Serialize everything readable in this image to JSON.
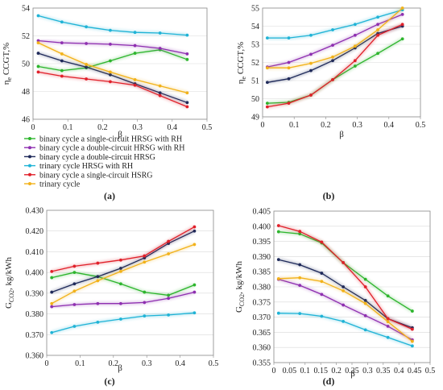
{
  "legend": [
    {
      "label": "binary cycle a single-circuit HRSG with RH",
      "color": "#2db52d"
    },
    {
      "label": "binary cycle a double-circuit HRSG with RH",
      "color": "#8e2fb0"
    },
    {
      "label": "binary cycle a double-circuit HRSG",
      "color": "#1f2a5a"
    },
    {
      "label": "trinary cycle HRSG with RH",
      "color": "#1fb3d6"
    },
    {
      "label": "binary cycle a single-circuit HSRG",
      "color": "#e0202a"
    },
    {
      "label": "trinary cycle",
      "color": "#f2b21a"
    }
  ],
  "chart_data": [
    {
      "type": "line",
      "panel_label": "(a)",
      "xlabel": "β",
      "ylabel": "η e CCGT,%",
      "ylabel_main": "η",
      "ylabel_sub": "e",
      "ylabel_rest": " CCGT,%",
      "xlim": [
        0,
        0.5
      ],
      "ylim": [
        46,
        54
      ],
      "xticks": [
        "0",
        "0.1",
        "0.2",
        "0.3",
        "0.4",
        "0.5"
      ],
      "yticks": [
        "46",
        "48",
        "50",
        "52",
        "54"
      ],
      "x": [
        0.015,
        0.083,
        0.153,
        0.222,
        0.293,
        0.365,
        0.443
      ],
      "series": [
        {
          "name": "binary cycle a single-circuit HRSG with RH",
          "color": "#2db52d",
          "values": [
            49.8,
            49.5,
            49.7,
            50.2,
            50.75,
            51.0,
            50.3
          ]
        },
        {
          "name": "binary cycle a double-circuit HRSG with RH",
          "color": "#8e2fb0",
          "values": [
            51.65,
            51.5,
            51.45,
            51.4,
            51.3,
            51.1,
            50.7
          ]
        },
        {
          "name": "binary cycle a double-circuit HRSG",
          "color": "#1f2a5a",
          "values": [
            50.75,
            50.2,
            49.75,
            49.2,
            48.55,
            47.9,
            47.2
          ]
        },
        {
          "name": "trinary cycle HRSG with RH",
          "color": "#1fb3d6",
          "values": [
            53.45,
            53.0,
            52.65,
            52.4,
            52.25,
            52.2,
            52.05
          ]
        },
        {
          "name": "binary cycle a single-circuit HSRG",
          "color": "#e0202a",
          "values": [
            49.4,
            49.1,
            48.9,
            48.7,
            48.45,
            47.7,
            46.9
          ]
        },
        {
          "name": "trinary cycle",
          "color": "#f2b21a",
          "values": [
            51.5,
            50.7,
            49.95,
            49.4,
            48.85,
            48.4,
            47.9
          ]
        }
      ]
    },
    {
      "type": "line",
      "panel_label": "(b)",
      "xlabel": "β",
      "ylabel": "η e CCGT,%",
      "ylabel_main": "η",
      "ylabel_sub": "e",
      "ylabel_rest": " CCGT,%",
      "xlim": [
        0,
        0.5
      ],
      "ylim": [
        49,
        55
      ],
      "xticks": [
        "0",
        "0.1",
        "0.2",
        "0.3",
        "0.4",
        "0.5"
      ],
      "yticks": [
        "49",
        "50",
        "51",
        "52",
        "53",
        "54",
        "55"
      ],
      "x": [
        0.015,
        0.083,
        0.153,
        0.222,
        0.293,
        0.365,
        0.443
      ],
      "series": [
        {
          "name": "binary cycle a single-circuit HRSG with RH",
          "color": "#2db52d",
          "values": [
            49.75,
            49.8,
            50.2,
            51.05,
            51.8,
            52.5,
            53.3
          ]
        },
        {
          "name": "binary cycle a double-circuit HRSG with RH",
          "color": "#8e2fb0",
          "values": [
            51.75,
            52.0,
            52.45,
            52.95,
            53.5,
            54.1,
            54.65
          ]
        },
        {
          "name": "binary cycle a double-circuit HRSG",
          "color": "#1f2a5a",
          "values": [
            50.9,
            51.1,
            51.55,
            52.1,
            52.8,
            53.6,
            54.0
          ]
        },
        {
          "name": "trinary cycle HRSG with RH",
          "color": "#1fb3d6",
          "values": [
            53.35,
            53.35,
            53.5,
            53.8,
            54.1,
            54.5,
            54.9
          ]
        },
        {
          "name": "binary cycle a single-circuit HSRG",
          "color": "#e0202a",
          "values": [
            49.55,
            49.75,
            50.2,
            51.05,
            52.1,
            53.5,
            54.1
          ]
        },
        {
          "name": "trinary cycle",
          "color": "#f2b21a",
          "values": [
            51.7,
            51.7,
            51.95,
            52.3,
            52.9,
            53.8,
            55.0
          ]
        }
      ]
    },
    {
      "type": "line",
      "panel_label": "(c)",
      "xlabel": "β",
      "ylabel": "G CO2, kg/kWh",
      "ylabel_main": "G",
      "ylabel_sub": "CO2",
      "ylabel_rest": ", kg/kWh",
      "xlim": [
        0,
        0.5
      ],
      "ylim": [
        0.36,
        0.43
      ],
      "xticks": [
        "0",
        "0.1",
        "0.2",
        "0.3",
        "0.4",
        "0.5"
      ],
      "yticks": [
        "0.360",
        "0.370",
        "0.380",
        "0.390",
        "0.400",
        "0.410",
        "0.420",
        "0.430"
      ],
      "x": [
        0.015,
        0.083,
        0.153,
        0.222,
        0.293,
        0.365,
        0.443
      ],
      "series": [
        {
          "name": "binary cycle a single-circuit HRSG with RH",
          "color": "#2db52d",
          "values": [
            0.3975,
            0.4,
            0.398,
            0.3945,
            0.3905,
            0.389,
            0.394
          ]
        },
        {
          "name": "binary cycle a double-circuit HRSG with RH",
          "color": "#8e2fb0",
          "values": [
            0.3835,
            0.3845,
            0.385,
            0.385,
            0.3855,
            0.3875,
            0.3905
          ]
        },
        {
          "name": "binary cycle a double-circuit HRSG",
          "color": "#1f2a5a",
          "values": [
            0.3905,
            0.3945,
            0.398,
            0.402,
            0.407,
            0.414,
            0.42
          ]
        },
        {
          "name": "trinary cycle HRSG with RH",
          "color": "#1fb3d6",
          "values": [
            0.371,
            0.374,
            0.376,
            0.3775,
            0.379,
            0.3795,
            0.3805
          ]
        },
        {
          "name": "binary cycle a single-circuit HSRG",
          "color": "#e0202a",
          "values": [
            0.4005,
            0.403,
            0.4045,
            0.406,
            0.408,
            0.415,
            0.422
          ]
        },
        {
          "name": "trinary cycle",
          "color": "#f2b21a",
          "values": [
            0.385,
            0.391,
            0.396,
            0.4005,
            0.405,
            0.409,
            0.4135
          ]
        }
      ]
    },
    {
      "type": "line",
      "panel_label": "(d)",
      "xlabel": "β",
      "ylabel": "G CO2, kg/kWh",
      "ylabel_main": "G",
      "ylabel_sub": "CO2",
      "ylabel_rest": ", kg/kWh",
      "xlim": [
        0,
        0.5
      ],
      "ylim": [
        0.355,
        0.405
      ],
      "xticks": [
        "0",
        "0.05",
        "0.1",
        "0.15",
        "0.2",
        "0.25",
        "0.3",
        "0.35",
        "0.4",
        "0.45",
        "0.5"
      ],
      "xtick_values": [
        0,
        0.05,
        0.1,
        0.15,
        0.2,
        0.25,
        0.3,
        0.35,
        0.4,
        0.45,
        0.5
      ],
      "yticks": [
        "0.355",
        "0.360",
        "0.365",
        "0.370",
        "0.375",
        "0.380",
        "0.385",
        "0.390",
        "0.395",
        "0.400",
        "0.405"
      ],
      "x": [
        0.015,
        0.083,
        0.153,
        0.222,
        0.293,
        0.365,
        0.443
      ],
      "series": [
        {
          "name": "binary cycle a single-circuit HRSG with RH",
          "color": "#2db52d",
          "values": [
            0.3982,
            0.3975,
            0.3945,
            0.388,
            0.3825,
            0.377,
            0.372
          ]
        },
        {
          "name": "binary cycle a double-circuit HRSG with RH",
          "color": "#8e2fb0",
          "values": [
            0.3825,
            0.3805,
            0.3775,
            0.374,
            0.3705,
            0.367,
            0.3625
          ]
        },
        {
          "name": "binary cycle a double-circuit HRSG",
          "color": "#1f2a5a",
          "values": [
            0.389,
            0.3873,
            0.3845,
            0.38,
            0.3755,
            0.3695,
            0.3665
          ]
        },
        {
          "name": "trinary cycle HRSG with RH",
          "color": "#1fb3d6",
          "values": [
            0.3713,
            0.3712,
            0.3703,
            0.3686,
            0.3658,
            0.3633,
            0.3605
          ]
        },
        {
          "name": "binary cycle a single-circuit HSRG",
          "color": "#e0202a",
          "values": [
            0.4002,
            0.3983,
            0.3948,
            0.388,
            0.38,
            0.3695,
            0.366
          ]
        },
        {
          "name": "trinary cycle",
          "color": "#f2b21a",
          "values": [
            0.3827,
            0.383,
            0.3818,
            0.3787,
            0.3745,
            0.3685,
            0.362
          ]
        }
      ]
    }
  ]
}
